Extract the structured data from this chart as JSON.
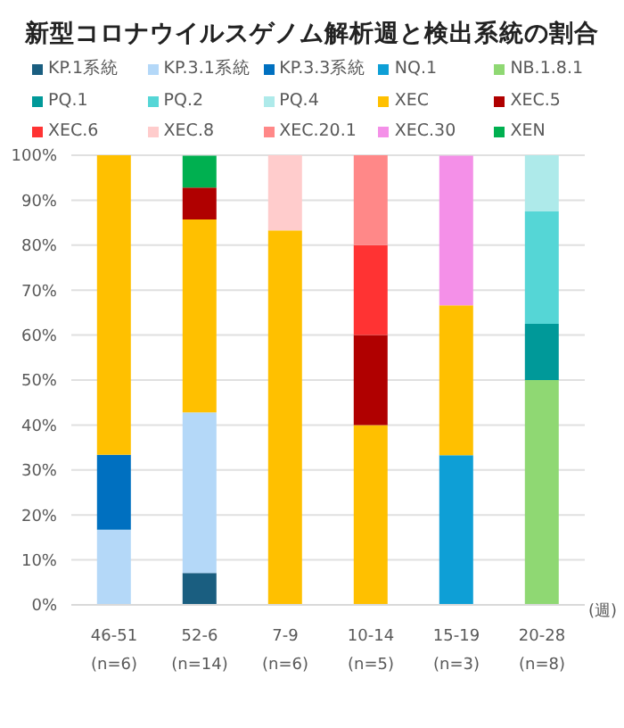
{
  "chart_data": {
    "type": "bar",
    "title": "新型コロナウイルスゲノム解析週と検出系統の割合",
    "xlabel": "(週)",
    "categories": [
      "46-51\n(n=6)",
      "52-6\n(n=14)",
      "7-9\n(n=6)",
      "10-14\n(n=5)",
      "15-19\n(n=3)",
      "20-28\n(n=8)"
    ],
    "stacked": true,
    "legend": "top",
    "grid": "y",
    "ylim": [
      0,
      100
    ],
    "yticks": [
      {
        "value": 0,
        "label": "0%"
      },
      {
        "value": 10,
        "label": "10%"
      },
      {
        "value": 20,
        "label": "20%"
      },
      {
        "value": 30,
        "label": "30%"
      },
      {
        "value": 40,
        "label": "40%"
      },
      {
        "value": 50,
        "label": "50%"
      },
      {
        "value": 60,
        "label": "60%"
      },
      {
        "value": 70,
        "label": "70%"
      },
      {
        "value": 80,
        "label": "80%"
      },
      {
        "value": 90,
        "label": "90%"
      },
      {
        "value": 100,
        "label": "100%"
      }
    ],
    "series": [
      {
        "name": "KP.1系統",
        "color": "#1a5e80",
        "values": [
          null,
          7.1,
          null,
          null,
          null,
          null
        ]
      },
      {
        "name": "KP.3.1系統",
        "color": "#b4d8f8",
        "values": [
          16.7,
          35.7,
          null,
          null,
          null,
          null
        ]
      },
      {
        "name": "KP.3.3系統",
        "color": "#0070c0",
        "values": [
          16.7,
          null,
          null,
          null,
          null,
          null
        ]
      },
      {
        "name": "NQ.1",
        "color": "#0e9fd6",
        "values": [
          null,
          null,
          null,
          null,
          33.3,
          null
        ]
      },
      {
        "name": "NB.1.8.1",
        "color": "#8fd873",
        "values": [
          null,
          null,
          null,
          null,
          null,
          50
        ]
      },
      {
        "name": "PQ.1",
        "color": "#009999",
        "values": [
          null,
          null,
          null,
          null,
          null,
          12.5
        ]
      },
      {
        "name": "PQ.2",
        "color": "#55d6d6",
        "values": [
          null,
          null,
          null,
          null,
          null,
          25
        ]
      },
      {
        "name": "PQ.4",
        "color": "#aeeaea",
        "values": [
          null,
          null,
          null,
          null,
          null,
          12.5
        ]
      },
      {
        "name": "XEC",
        "color": "#ffc000",
        "values": [
          66.7,
          42.9,
          83.3,
          40,
          33.3,
          null
        ]
      },
      {
        "name": "XEC.5",
        "color": "#b00000",
        "values": [
          null,
          7.1,
          null,
          20,
          null,
          null
        ]
      },
      {
        "name": "XEC.6",
        "color": "#ff3333",
        "values": [
          null,
          null,
          null,
          20,
          null,
          null
        ]
      },
      {
        "name": "XEC.8",
        "color": "#ffcccc",
        "values": [
          null,
          null,
          16.7,
          null,
          null,
          null
        ]
      },
      {
        "name": "XEC.20.1",
        "color": "#ff8888",
        "values": [
          null,
          null,
          null,
          20,
          null,
          null
        ]
      },
      {
        "name": "XEC.30",
        "color": "#f490e8",
        "values": [
          null,
          null,
          null,
          null,
          33.3,
          null
        ]
      },
      {
        "name": "XEN",
        "color": "#00b050",
        "values": [
          null,
          7.1,
          null,
          null,
          null,
          null
        ]
      }
    ]
  }
}
